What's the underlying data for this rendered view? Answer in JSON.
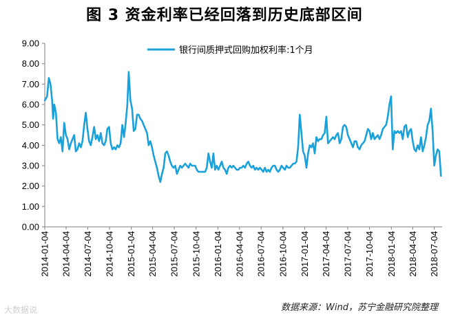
{
  "title": "图 3  资金利率已经回落到历史底部区间",
  "source_note": "数据来源：Wind，苏宁金融研究院整理",
  "watermark": "大数据说",
  "colors": {
    "line": "#1aa1d9",
    "axis": "#7f7f7f"
  },
  "chart_data": {
    "type": "line",
    "title": "图 3  资金利率已经回落到历史底部区间",
    "xlabel": "",
    "ylabel": "",
    "ylim": [
      0,
      9
    ],
    "yticks": [
      "0.00",
      "1.00",
      "2.00",
      "3.00",
      "4.00",
      "5.00",
      "6.00",
      "7.00",
      "8.00",
      "9.00"
    ],
    "xticks": [
      "2014-01-04",
      "2014-04-04",
      "2014-07-04",
      "2014-10-04",
      "2015-01-04",
      "2015-04-04",
      "2015-07-04",
      "2015-10-04",
      "2016-01-04",
      "2016-04-04",
      "2016-07-04",
      "2016-10-04",
      "2017-01-04",
      "2017-04-04",
      "2017-07-04",
      "2017-10-04",
      "2018-01-04",
      "2018-04-04",
      "2018-07-04"
    ],
    "grid": false,
    "legend": "top-center",
    "series": [
      {
        "name": "银行间质押式回购加权利率:1个月",
        "points": [
          [
            "2014-01-04",
            6.2
          ],
          [
            "2014-01-14",
            6.4
          ],
          [
            "2014-01-21",
            7.3
          ],
          [
            "2014-01-28",
            7.0
          ],
          [
            "2014-02-04",
            6.2
          ],
          [
            "2014-02-08",
            5.3
          ],
          [
            "2014-02-13",
            6.0
          ],
          [
            "2014-02-20",
            5.6
          ],
          [
            "2014-02-27",
            4.3
          ],
          [
            "2014-03-06",
            4.1
          ],
          [
            "2014-03-13",
            4.4
          ],
          [
            "2014-03-20",
            3.7
          ],
          [
            "2014-03-27",
            5.1
          ],
          [
            "2014-04-03",
            4.5
          ],
          [
            "2014-04-10",
            4.3
          ],
          [
            "2014-04-17",
            3.8
          ],
          [
            "2014-04-24",
            4.1
          ],
          [
            "2014-05-01",
            4.3
          ],
          [
            "2014-05-08",
            4.5
          ],
          [
            "2014-05-15",
            3.7
          ],
          [
            "2014-05-22",
            3.8
          ],
          [
            "2014-05-29",
            4.1
          ],
          [
            "2014-06-05",
            3.9
          ],
          [
            "2014-06-12",
            4.2
          ],
          [
            "2014-06-19",
            5.0
          ],
          [
            "2014-06-26",
            5.6
          ],
          [
            "2014-07-03",
            4.8
          ],
          [
            "2014-07-10",
            4.2
          ],
          [
            "2014-07-17",
            4.0
          ],
          [
            "2014-07-24",
            4.4
          ],
          [
            "2014-07-31",
            4.9
          ],
          [
            "2014-08-07",
            4.3
          ],
          [
            "2014-08-14",
            4.5
          ],
          [
            "2014-08-21",
            4.2
          ],
          [
            "2014-08-28",
            4.6
          ],
          [
            "2014-09-04",
            4.1
          ],
          [
            "2014-09-11",
            4.0
          ],
          [
            "2014-09-18",
            4.2
          ],
          [
            "2014-09-25",
            4.8
          ],
          [
            "2014-10-02",
            4.9
          ],
          [
            "2014-10-09",
            4.1
          ],
          [
            "2014-10-16",
            3.8
          ],
          [
            "2014-10-23",
            3.9
          ],
          [
            "2014-10-30",
            3.8
          ],
          [
            "2014-11-06",
            4.0
          ],
          [
            "2014-11-13",
            3.9
          ],
          [
            "2014-11-20",
            4.1
          ],
          [
            "2014-11-27",
            5.0
          ],
          [
            "2014-12-04",
            4.4
          ],
          [
            "2014-12-11",
            5.1
          ],
          [
            "2014-12-18",
            6.0
          ],
          [
            "2014-12-24",
            7.6
          ],
          [
            "2014-12-31",
            6.2
          ],
          [
            "2015-01-07",
            5.8
          ],
          [
            "2015-01-14",
            4.7
          ],
          [
            "2015-01-21",
            4.8
          ],
          [
            "2015-01-28",
            5.5
          ],
          [
            "2015-02-04",
            5.5
          ],
          [
            "2015-02-11",
            5.3
          ],
          [
            "2015-02-18",
            5.2
          ],
          [
            "2015-02-25",
            5.0
          ],
          [
            "2015-03-04",
            4.8
          ],
          [
            "2015-03-11",
            4.6
          ],
          [
            "2015-03-18",
            4.0
          ],
          [
            "2015-03-25",
            4.2
          ],
          [
            "2015-04-01",
            3.9
          ],
          [
            "2015-04-08",
            3.5
          ],
          [
            "2015-04-15",
            3.2
          ],
          [
            "2015-04-22",
            2.9
          ],
          [
            "2015-04-29",
            2.5
          ],
          [
            "2015-05-06",
            2.2
          ],
          [
            "2015-05-13",
            2.6
          ],
          [
            "2015-05-20",
            2.9
          ],
          [
            "2015-05-27",
            3.6
          ],
          [
            "2015-06-03",
            3.7
          ],
          [
            "2015-06-10",
            3.5
          ],
          [
            "2015-06-17",
            3.2
          ],
          [
            "2015-06-24",
            3.0
          ],
          [
            "2015-07-01",
            2.9
          ],
          [
            "2015-07-08",
            3.0
          ],
          [
            "2015-07-15",
            2.6
          ],
          [
            "2015-07-22",
            2.8
          ],
          [
            "2015-07-29",
            3.0
          ],
          [
            "2015-08-05",
            2.9
          ],
          [
            "2015-08-12",
            3.0
          ],
          [
            "2015-08-19",
            3.1
          ],
          [
            "2015-08-26",
            3.0
          ],
          [
            "2015-09-02",
            2.9
          ],
          [
            "2015-09-09",
            3.1
          ],
          [
            "2015-09-16",
            3.0
          ],
          [
            "2015-09-23",
            3.0
          ],
          [
            "2015-09-30",
            3.0
          ],
          [
            "2015-10-07",
            2.8
          ],
          [
            "2015-10-14",
            2.7
          ],
          [
            "2015-10-21",
            2.7
          ],
          [
            "2015-10-28",
            2.7
          ],
          [
            "2015-11-04",
            2.7
          ],
          [
            "2015-11-11",
            2.7
          ],
          [
            "2015-11-18",
            2.9
          ],
          [
            "2015-11-25",
            3.6
          ],
          [
            "2015-12-02",
            3.2
          ],
          [
            "2015-12-09",
            2.9
          ],
          [
            "2015-12-16",
            3.6
          ],
          [
            "2015-12-23",
            2.8
          ],
          [
            "2015-12-30",
            3.0
          ],
          [
            "2016-01-06",
            2.8
          ],
          [
            "2016-01-13",
            3.0
          ],
          [
            "2016-01-20",
            3.2
          ],
          [
            "2016-01-27",
            2.9
          ],
          [
            "2016-02-03",
            2.8
          ],
          [
            "2016-02-10",
            2.6
          ],
          [
            "2016-02-17",
            2.9
          ],
          [
            "2016-02-24",
            3.0
          ],
          [
            "2016-03-02",
            2.9
          ],
          [
            "2016-03-09",
            3.0
          ],
          [
            "2016-03-16",
            2.9
          ],
          [
            "2016-03-23",
            2.8
          ],
          [
            "2016-03-30",
            2.8
          ],
          [
            "2016-04-06",
            2.9
          ],
          [
            "2016-04-13",
            2.9
          ],
          [
            "2016-04-20",
            3.0
          ],
          [
            "2016-04-27",
            2.9
          ],
          [
            "2016-05-04",
            3.1
          ],
          [
            "2016-05-11",
            3.2
          ],
          [
            "2016-05-18",
            3.0
          ],
          [
            "2016-05-25",
            2.9
          ],
          [
            "2016-06-01",
            3.0
          ],
          [
            "2016-06-08",
            2.8
          ],
          [
            "2016-06-15",
            2.9
          ],
          [
            "2016-06-22",
            2.8
          ],
          [
            "2016-06-29",
            2.9
          ],
          [
            "2016-07-06",
            2.8
          ],
          [
            "2016-07-13",
            2.7
          ],
          [
            "2016-07-20",
            2.9
          ],
          [
            "2016-07-27",
            2.7
          ],
          [
            "2016-08-03",
            2.8
          ],
          [
            "2016-08-10",
            2.7
          ],
          [
            "2016-08-17",
            2.9
          ],
          [
            "2016-08-24",
            3.0
          ],
          [
            "2016-08-31",
            3.0
          ],
          [
            "2016-09-07",
            2.8
          ],
          [
            "2016-09-14",
            2.7
          ],
          [
            "2016-09-21",
            2.8
          ],
          [
            "2016-09-28",
            3.0
          ],
          [
            "2016-10-05",
            2.9
          ],
          [
            "2016-10-12",
            2.8
          ],
          [
            "2016-10-19",
            3.0
          ],
          [
            "2016-10-26",
            2.9
          ],
          [
            "2016-11-02",
            2.9
          ],
          [
            "2016-11-09",
            3.0
          ],
          [
            "2016-11-16",
            3.1
          ],
          [
            "2016-11-23",
            3.1
          ],
          [
            "2016-11-30",
            3.2
          ],
          [
            "2016-12-07",
            3.9
          ],
          [
            "2016-12-14",
            5.5
          ],
          [
            "2016-12-21",
            4.6
          ],
          [
            "2016-12-28",
            3.7
          ],
          [
            "2017-01-04",
            3.5
          ],
          [
            "2017-01-11",
            2.9
          ],
          [
            "2017-01-18",
            3.6
          ],
          [
            "2017-01-25",
            4.0
          ],
          [
            "2017-02-01",
            3.9
          ],
          [
            "2017-02-08",
            4.1
          ],
          [
            "2017-02-15",
            3.6
          ],
          [
            "2017-02-22",
            4.4
          ],
          [
            "2017-03-01",
            4.2
          ],
          [
            "2017-03-08",
            4.3
          ],
          [
            "2017-03-15",
            4.3
          ],
          [
            "2017-03-22",
            4.5
          ],
          [
            "2017-03-29",
            4.6
          ],
          [
            "2017-04-05",
            5.4
          ],
          [
            "2017-04-12",
            4.1
          ],
          [
            "2017-04-19",
            4.2
          ],
          [
            "2017-04-26",
            4.3
          ],
          [
            "2017-05-03",
            4.4
          ],
          [
            "2017-05-10",
            4.3
          ],
          [
            "2017-05-17",
            4.5
          ],
          [
            "2017-05-24",
            4.6
          ],
          [
            "2017-05-31",
            4.1
          ],
          [
            "2017-06-07",
            4.3
          ],
          [
            "2017-06-14",
            4.9
          ],
          [
            "2017-06-21",
            5.0
          ],
          [
            "2017-06-28",
            4.9
          ],
          [
            "2017-07-05",
            4.5
          ],
          [
            "2017-07-12",
            4.3
          ],
          [
            "2017-07-19",
            4.1
          ],
          [
            "2017-07-26",
            3.9
          ],
          [
            "2017-08-02",
            4.2
          ],
          [
            "2017-08-09",
            4.2
          ],
          [
            "2017-08-16",
            3.9
          ],
          [
            "2017-08-23",
            3.8
          ],
          [
            "2017-08-30",
            4.0
          ],
          [
            "2017-09-06",
            4.1
          ],
          [
            "2017-09-13",
            4.2
          ],
          [
            "2017-09-20",
            4.5
          ],
          [
            "2017-09-27",
            4.8
          ],
          [
            "2017-10-04",
            4.7
          ],
          [
            "2017-10-11",
            4.3
          ],
          [
            "2017-10-18",
            4.6
          ],
          [
            "2017-10-25",
            4.3
          ],
          [
            "2017-11-01",
            4.4
          ],
          [
            "2017-11-08",
            4.5
          ],
          [
            "2017-11-15",
            4.3
          ],
          [
            "2017-11-22",
            4.5
          ],
          [
            "2017-11-29",
            4.8
          ],
          [
            "2017-12-06",
            4.9
          ],
          [
            "2017-12-13",
            5.0
          ],
          [
            "2017-12-20",
            5.4
          ],
          [
            "2017-12-27",
            6.0
          ],
          [
            "2018-01-03",
            6.4
          ],
          [
            "2018-01-10",
            3.8
          ],
          [
            "2018-01-17",
            4.7
          ],
          [
            "2018-01-24",
            4.6
          ],
          [
            "2018-01-31",
            4.7
          ],
          [
            "2018-02-07",
            4.6
          ],
          [
            "2018-02-14",
            4.7
          ],
          [
            "2018-02-21",
            4.3
          ],
          [
            "2018-02-28",
            4.9
          ],
          [
            "2018-03-07",
            5.0
          ],
          [
            "2018-03-14",
            4.4
          ],
          [
            "2018-03-21",
            4.7
          ],
          [
            "2018-03-28",
            4.8
          ],
          [
            "2018-04-04",
            4.2
          ],
          [
            "2018-04-11",
            3.8
          ],
          [
            "2018-04-18",
            3.7
          ],
          [
            "2018-04-25",
            4.0
          ],
          [
            "2018-05-02",
            3.8
          ],
          [
            "2018-05-09",
            4.4
          ],
          [
            "2018-05-16",
            3.7
          ],
          [
            "2018-05-23",
            4.0
          ],
          [
            "2018-05-30",
            4.4
          ],
          [
            "2018-06-06",
            5.0
          ],
          [
            "2018-06-13",
            5.2
          ],
          [
            "2018-06-20",
            5.8
          ],
          [
            "2018-06-27",
            4.7
          ],
          [
            "2018-07-04",
            3.0
          ],
          [
            "2018-07-11",
            3.5
          ],
          [
            "2018-07-18",
            3.8
          ],
          [
            "2018-07-25",
            3.7
          ],
          [
            "2018-08-01",
            2.5
          ]
        ]
      }
    ]
  }
}
